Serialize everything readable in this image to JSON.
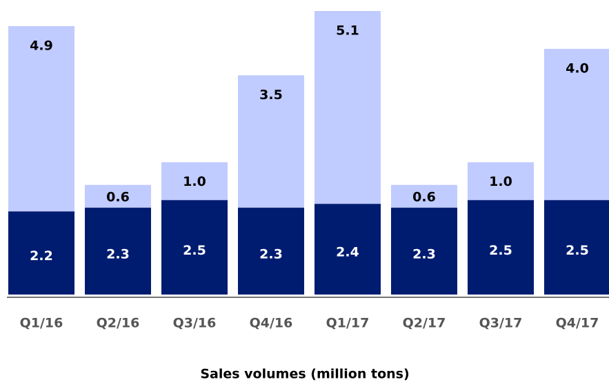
{
  "chart_data": {
    "type": "stacked_bar",
    "title": "Sales volumes (million tons)",
    "categories": [
      "Q1/16",
      "Q2/16",
      "Q3/16",
      "Q4/16",
      "Q1/17",
      "Q2/17",
      "Q3/17",
      "Q4/17"
    ],
    "series": [
      {
        "color": "#001c71",
        "label_color": "#ffffff",
        "values": [
          2.2,
          2.3,
          2.5,
          2.3,
          2.4,
          2.3,
          2.5,
          2.5
        ]
      },
      {
        "color": "#c0cbff",
        "label_color": "#000000",
        "values": [
          4.9,
          0.6,
          1.0,
          3.5,
          5.1,
          0.6,
          1.0,
          4.0
        ],
        "value_labels": [
          "4.9",
          "0.6",
          "1.0",
          "3.5",
          "5.1",
          "0.6",
          "1.0",
          "4.0"
        ]
      }
    ],
    "ylim": [
      0,
      7.5
    ]
  }
}
